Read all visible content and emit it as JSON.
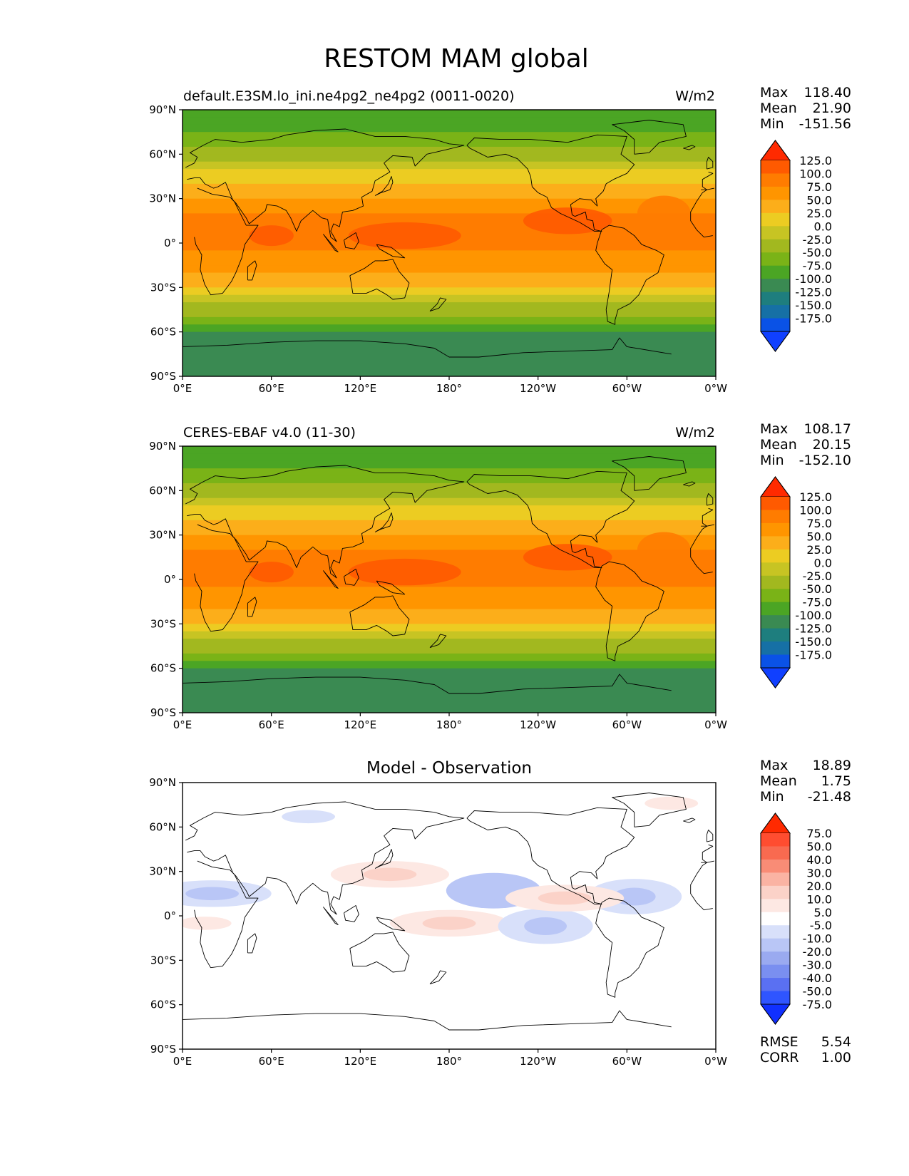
{
  "figure": {
    "title": "RESTOM MAM global"
  },
  "axes": {
    "x_ticks": [
      "0°E",
      "60°E",
      "120°E",
      "180°",
      "120°W",
      "60°W",
      "0°W"
    ],
    "y_ticks": [
      "90°N",
      "60°N",
      "30°N",
      "0°",
      "30°S",
      "60°S",
      "90°S"
    ]
  },
  "chart_data": [
    {
      "type": "heatmap",
      "title": "default.E3SM.lo_ini.ne4pg2_ne4pg2 (0011-0020)",
      "units": "W/m2",
      "xlabel": "",
      "ylabel": "",
      "xlim": [
        0,
        360
      ],
      "ylim": [
        -90,
        90
      ],
      "stats": {
        "max_label": "Max",
        "max": "118.40",
        "mean_label": "Mean",
        "mean": "21.90",
        "min_label": "Min",
        "min": "-151.56"
      },
      "colorbar": {
        "levels": [
          "125.0",
          "100.0",
          "75.0",
          "50.0",
          "25.0",
          "0.0",
          "-25.0",
          "-50.0",
          "-75.0",
          "-100.0",
          "-125.0",
          "-150.0",
          "-175.0"
        ],
        "colors": [
          "#ff2a00",
          "#ff5a00",
          "#ff7c00",
          "#ff9500",
          "#fcae1a",
          "#eccc22",
          "#c7c423",
          "#a2b81f",
          "#7ab317",
          "#4ba524",
          "#3a8a52",
          "#1e7e7e",
          "#1670a5",
          "#0a52e6",
          "#1040ff"
        ]
      },
      "zonal_profile": {
        "lat": [
          90,
          80,
          70,
          60,
          50,
          40,
          30,
          20,
          10,
          0,
          -10,
          -20,
          -30,
          -40,
          -50,
          -60,
          -70,
          -80,
          -90
        ],
        "value": [
          -95,
          -85,
          -65,
          -35,
          -5,
          20,
          55,
          75,
          90,
          80,
          70,
          55,
          25,
          -20,
          -60,
          -95,
          -130,
          -105,
          -100
        ]
      }
    },
    {
      "type": "heatmap",
      "title": "CERES-EBAF v4.0 (11-30)",
      "units": "W/m2",
      "xlabel": "",
      "ylabel": "",
      "xlim": [
        0,
        360
      ],
      "ylim": [
        -90,
        90
      ],
      "stats": {
        "max_label": "Max",
        "max": "108.17",
        "mean_label": "Mean",
        "mean": "20.15",
        "min_label": "Min",
        "min": "-152.10"
      },
      "colorbar": {
        "levels": [
          "125.0",
          "100.0",
          "75.0",
          "50.0",
          "25.0",
          "0.0",
          "-25.0",
          "-50.0",
          "-75.0",
          "-100.0",
          "-125.0",
          "-150.0",
          "-175.0"
        ],
        "colors": [
          "#ff2a00",
          "#ff5a00",
          "#ff7c00",
          "#ff9500",
          "#fcae1a",
          "#eccc22",
          "#c7c423",
          "#a2b81f",
          "#7ab317",
          "#4ba524",
          "#3a8a52",
          "#1e7e7e",
          "#1670a5",
          "#0a52e6",
          "#1040ff"
        ]
      },
      "zonal_profile": {
        "lat": [
          90,
          80,
          70,
          60,
          50,
          40,
          30,
          20,
          10,
          0,
          -10,
          -20,
          -30,
          -40,
          -50,
          -60,
          -70,
          -80,
          -90
        ],
        "value": [
          -95,
          -85,
          -65,
          -35,
          -5,
          20,
          50,
          72,
          85,
          78,
          70,
          52,
          22,
          -20,
          -60,
          -95,
          -130,
          -105,
          -100
        ]
      }
    },
    {
      "type": "heatmap",
      "title": "Model - Observation",
      "units": "",
      "xlabel": "",
      "ylabel": "",
      "xlim": [
        0,
        360
      ],
      "ylim": [
        -90,
        90
      ],
      "stats": {
        "max_label": "Max",
        "max": "18.89",
        "mean_label": "Mean",
        "mean": "1.75",
        "min_label": "Min",
        "min": "-21.48"
      },
      "extra_stats": {
        "rmse_label": "RMSE",
        "rmse": "5.54",
        "corr_label": "CORR",
        "corr": "1.00"
      },
      "colorbar": {
        "levels": [
          "75.0",
          "50.0",
          "40.0",
          "30.0",
          "20.0",
          "10.0",
          "5.0",
          "-5.0",
          "-10.0",
          "-20.0",
          "-30.0",
          "-40.0",
          "-50.0",
          "-75.0"
        ],
        "colors": [
          "#ff2a00",
          "#ff4d30",
          "#f96a50",
          "#f98c76",
          "#fab3a3",
          "#fbd2c8",
          "#fde8e3",
          "#ffffff",
          "#d8e0fa",
          "#b9c6f6",
          "#9aaaf0",
          "#7a8ff0",
          "#5a70f2",
          "#2f55ff",
          "#1030ff"
        ]
      },
      "anomalies": [
        {
          "lon": 20,
          "lat": 15,
          "value": -12
        },
        {
          "lon": 85,
          "lat": 67,
          "value": -9
        },
        {
          "lon": 140,
          "lat": 28,
          "value": 12
        },
        {
          "lon": 180,
          "lat": -5,
          "value": 12
        },
        {
          "lon": 210,
          "lat": 17,
          "value": -20
        },
        {
          "lon": 245,
          "lat": -7,
          "value": -18
        },
        {
          "lon": 305,
          "lat": 13,
          "value": -18
        },
        {
          "lon": 258,
          "lat": 12,
          "value": 10
        },
        {
          "lon": 15,
          "lat": -5,
          "value": 9
        },
        {
          "lon": 330,
          "lat": 76,
          "value": 8
        }
      ]
    }
  ]
}
